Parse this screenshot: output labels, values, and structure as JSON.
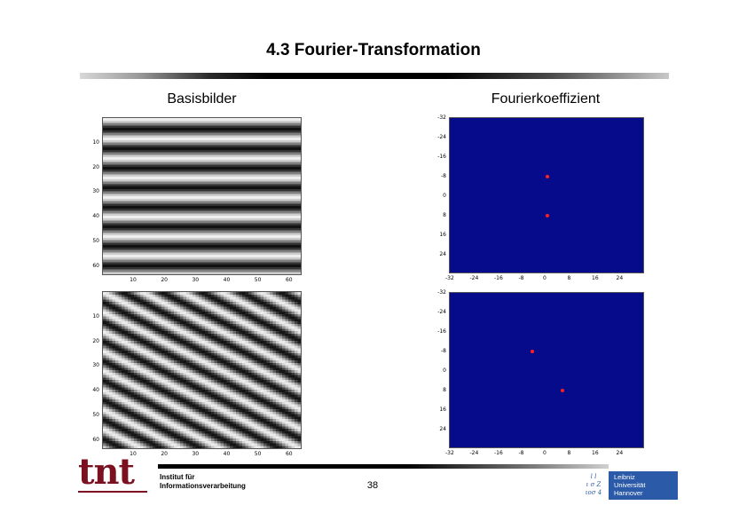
{
  "slide": {
    "title": "4.3 Fourier-Transformation",
    "left_heading": "Basisbilder",
    "right_heading": "Fourierkoeffizient"
  },
  "basis_axes": {
    "x_ticks": [
      "10",
      "20",
      "30",
      "40",
      "50",
      "60"
    ],
    "y_ticks": [
      "10",
      "20",
      "30",
      "40",
      "50",
      "60"
    ]
  },
  "fourier_axes": {
    "x_ticks": [
      "-32",
      "-24",
      "-16",
      "-8",
      "0",
      "8",
      "16",
      "24"
    ],
    "y_ticks": [
      "-32",
      "-24",
      "-16",
      "-8",
      "0",
      "8",
      "16",
      "24"
    ]
  },
  "fourier_top": {
    "peaks": [
      [
        0,
        -8
      ],
      [
        0,
        8
      ]
    ]
  },
  "fourier_bottom": {
    "peaks": [
      [
        -5,
        -8
      ],
      [
        5,
        8
      ]
    ]
  },
  "colors": {
    "spectrum_bg": "#060b8c",
    "peak": "#ff2020",
    "brand": "#7a1020",
    "luh": "#2b5aa8"
  },
  "footer": {
    "logo": "tnt",
    "institute_line1": "Institut für",
    "institute_line2": "Informationsverarbeitung",
    "page": "38",
    "uni_mark_lines": [
      "l  l",
      "ι σ  Z",
      "ιoσ 4"
    ],
    "uni_name": [
      "Leibniz",
      "Universität",
      "Hannover"
    ]
  }
}
